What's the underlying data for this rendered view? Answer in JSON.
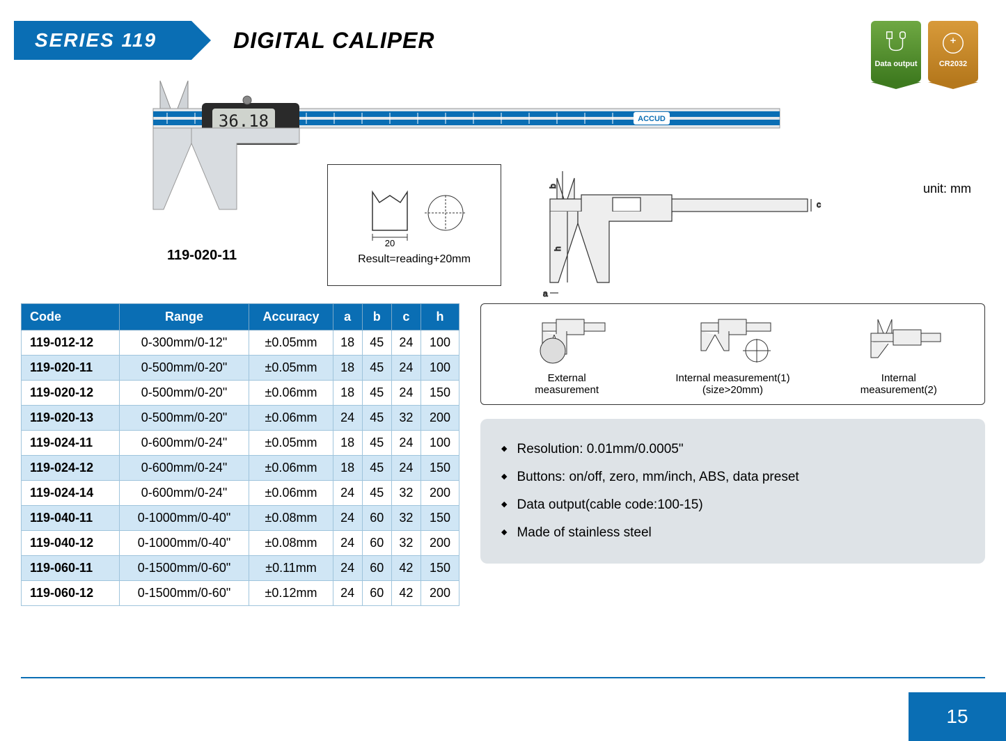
{
  "header": {
    "series": "SERIES 119",
    "title": "DIGITAL CALIPER"
  },
  "badges": {
    "data_output": "Data output",
    "battery": "CR2032"
  },
  "product": {
    "model_label": "119-020-11",
    "display_reading": "36.18",
    "brand": "ACCUD",
    "diagram_dim": "20",
    "diagram_text": "Result=reading+20mm",
    "unit_label": "unit: mm"
  },
  "table": {
    "columns": [
      "Code",
      "Range",
      "Accuracy",
      "a",
      "b",
      "c",
      "h"
    ],
    "rows": [
      [
        "119-012-12",
        "0-300mm/0-12\"",
        "±0.05mm",
        "18",
        "45",
        "24",
        "100"
      ],
      [
        "119-020-11",
        "0-500mm/0-20\"",
        "±0.05mm",
        "18",
        "45",
        "24",
        "100"
      ],
      [
        "119-020-12",
        "0-500mm/0-20\"",
        "±0.06mm",
        "18",
        "45",
        "24",
        "150"
      ],
      [
        "119-020-13",
        "0-500mm/0-20\"",
        "±0.06mm",
        "24",
        "45",
        "32",
        "200"
      ],
      [
        "119-024-11",
        "0-600mm/0-24\"",
        "±0.05mm",
        "18",
        "45",
        "24",
        "100"
      ],
      [
        "119-024-12",
        "0-600mm/0-24\"",
        "±0.06mm",
        "18",
        "45",
        "24",
        "150"
      ],
      [
        "119-024-14",
        "0-600mm/0-24\"",
        "±0.06mm",
        "24",
        "45",
        "32",
        "200"
      ],
      [
        "119-040-11",
        "0-1000mm/0-40\"",
        "±0.08mm",
        "24",
        "60",
        "32",
        "150"
      ],
      [
        "119-040-12",
        "0-1000mm/0-40\"",
        "±0.08mm",
        "24",
        "60",
        "32",
        "200"
      ],
      [
        "119-060-11",
        "0-1500mm/0-60\"",
        "±0.11mm",
        "24",
        "60",
        "42",
        "150"
      ],
      [
        "119-060-12",
        "0-1500mm/0-60\"",
        "±0.12mm",
        "24",
        "60",
        "42",
        "200"
      ]
    ],
    "header_bg": "#0a6eb4",
    "alt_row_bg": "#d0e6f5"
  },
  "measurements": {
    "external": "External\nmeasurement",
    "internal1": "Internal measurement(1)\n(size>20mm)",
    "internal2": "Internal\nmeasurement(2)"
  },
  "features": [
    "Resolution: 0.01mm/0.0005\"",
    "Buttons: on/off, zero, mm/inch,  ABS, data preset",
    "Data output(cable code:100-15)",
    "Made of stainless steel"
  ],
  "page_number": "15",
  "colors": {
    "primary": "#0a6eb4",
    "feature_bg": "#dee3e7"
  }
}
